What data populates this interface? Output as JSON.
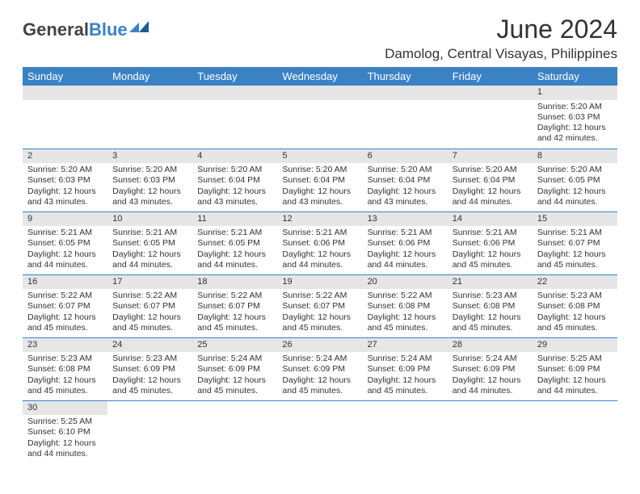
{
  "brand": {
    "part1": "General",
    "part2": "Blue"
  },
  "title": "June 2024",
  "location": "Damolog, Central Visayas, Philippines",
  "colors": {
    "header_bg": "#3b82c4",
    "header_text": "#ffffff",
    "daynum_bg": "#e6e6e6",
    "border": "#3b82c4",
    "text": "#333333",
    "background": "#ffffff"
  },
  "weekdays": [
    "Sunday",
    "Monday",
    "Tuesday",
    "Wednesday",
    "Thursday",
    "Friday",
    "Saturday"
  ],
  "weeks": [
    [
      {
        "n": "",
        "sunrise": "",
        "sunset": "",
        "daylight": ""
      },
      {
        "n": "",
        "sunrise": "",
        "sunset": "",
        "daylight": ""
      },
      {
        "n": "",
        "sunrise": "",
        "sunset": "",
        "daylight": ""
      },
      {
        "n": "",
        "sunrise": "",
        "sunset": "",
        "daylight": ""
      },
      {
        "n": "",
        "sunrise": "",
        "sunset": "",
        "daylight": ""
      },
      {
        "n": "",
        "sunrise": "",
        "sunset": "",
        "daylight": ""
      },
      {
        "n": "1",
        "sunrise": "Sunrise: 5:20 AM",
        "sunset": "Sunset: 6:03 PM",
        "daylight": "Daylight: 12 hours and 42 minutes."
      }
    ],
    [
      {
        "n": "2",
        "sunrise": "Sunrise: 5:20 AM",
        "sunset": "Sunset: 6:03 PM",
        "daylight": "Daylight: 12 hours and 43 minutes."
      },
      {
        "n": "3",
        "sunrise": "Sunrise: 5:20 AM",
        "sunset": "Sunset: 6:03 PM",
        "daylight": "Daylight: 12 hours and 43 minutes."
      },
      {
        "n": "4",
        "sunrise": "Sunrise: 5:20 AM",
        "sunset": "Sunset: 6:04 PM",
        "daylight": "Daylight: 12 hours and 43 minutes."
      },
      {
        "n": "5",
        "sunrise": "Sunrise: 5:20 AM",
        "sunset": "Sunset: 6:04 PM",
        "daylight": "Daylight: 12 hours and 43 minutes."
      },
      {
        "n": "6",
        "sunrise": "Sunrise: 5:20 AM",
        "sunset": "Sunset: 6:04 PM",
        "daylight": "Daylight: 12 hours and 43 minutes."
      },
      {
        "n": "7",
        "sunrise": "Sunrise: 5:20 AM",
        "sunset": "Sunset: 6:04 PM",
        "daylight": "Daylight: 12 hours and 44 minutes."
      },
      {
        "n": "8",
        "sunrise": "Sunrise: 5:20 AM",
        "sunset": "Sunset: 6:05 PM",
        "daylight": "Daylight: 12 hours and 44 minutes."
      }
    ],
    [
      {
        "n": "9",
        "sunrise": "Sunrise: 5:21 AM",
        "sunset": "Sunset: 6:05 PM",
        "daylight": "Daylight: 12 hours and 44 minutes."
      },
      {
        "n": "10",
        "sunrise": "Sunrise: 5:21 AM",
        "sunset": "Sunset: 6:05 PM",
        "daylight": "Daylight: 12 hours and 44 minutes."
      },
      {
        "n": "11",
        "sunrise": "Sunrise: 5:21 AM",
        "sunset": "Sunset: 6:05 PM",
        "daylight": "Daylight: 12 hours and 44 minutes."
      },
      {
        "n": "12",
        "sunrise": "Sunrise: 5:21 AM",
        "sunset": "Sunset: 6:06 PM",
        "daylight": "Daylight: 12 hours and 44 minutes."
      },
      {
        "n": "13",
        "sunrise": "Sunrise: 5:21 AM",
        "sunset": "Sunset: 6:06 PM",
        "daylight": "Daylight: 12 hours and 44 minutes."
      },
      {
        "n": "14",
        "sunrise": "Sunrise: 5:21 AM",
        "sunset": "Sunset: 6:06 PM",
        "daylight": "Daylight: 12 hours and 45 minutes."
      },
      {
        "n": "15",
        "sunrise": "Sunrise: 5:21 AM",
        "sunset": "Sunset: 6:07 PM",
        "daylight": "Daylight: 12 hours and 45 minutes."
      }
    ],
    [
      {
        "n": "16",
        "sunrise": "Sunrise: 5:22 AM",
        "sunset": "Sunset: 6:07 PM",
        "daylight": "Daylight: 12 hours and 45 minutes."
      },
      {
        "n": "17",
        "sunrise": "Sunrise: 5:22 AM",
        "sunset": "Sunset: 6:07 PM",
        "daylight": "Daylight: 12 hours and 45 minutes."
      },
      {
        "n": "18",
        "sunrise": "Sunrise: 5:22 AM",
        "sunset": "Sunset: 6:07 PM",
        "daylight": "Daylight: 12 hours and 45 minutes."
      },
      {
        "n": "19",
        "sunrise": "Sunrise: 5:22 AM",
        "sunset": "Sunset: 6:07 PM",
        "daylight": "Daylight: 12 hours and 45 minutes."
      },
      {
        "n": "20",
        "sunrise": "Sunrise: 5:22 AM",
        "sunset": "Sunset: 6:08 PM",
        "daylight": "Daylight: 12 hours and 45 minutes."
      },
      {
        "n": "21",
        "sunrise": "Sunrise: 5:23 AM",
        "sunset": "Sunset: 6:08 PM",
        "daylight": "Daylight: 12 hours and 45 minutes."
      },
      {
        "n": "22",
        "sunrise": "Sunrise: 5:23 AM",
        "sunset": "Sunset: 6:08 PM",
        "daylight": "Daylight: 12 hours and 45 minutes."
      }
    ],
    [
      {
        "n": "23",
        "sunrise": "Sunrise: 5:23 AM",
        "sunset": "Sunset: 6:08 PM",
        "daylight": "Daylight: 12 hours and 45 minutes."
      },
      {
        "n": "24",
        "sunrise": "Sunrise: 5:23 AM",
        "sunset": "Sunset: 6:09 PM",
        "daylight": "Daylight: 12 hours and 45 minutes."
      },
      {
        "n": "25",
        "sunrise": "Sunrise: 5:24 AM",
        "sunset": "Sunset: 6:09 PM",
        "daylight": "Daylight: 12 hours and 45 minutes."
      },
      {
        "n": "26",
        "sunrise": "Sunrise: 5:24 AM",
        "sunset": "Sunset: 6:09 PM",
        "daylight": "Daylight: 12 hours and 45 minutes."
      },
      {
        "n": "27",
        "sunrise": "Sunrise: 5:24 AM",
        "sunset": "Sunset: 6:09 PM",
        "daylight": "Daylight: 12 hours and 45 minutes."
      },
      {
        "n": "28",
        "sunrise": "Sunrise: 5:24 AM",
        "sunset": "Sunset: 6:09 PM",
        "daylight": "Daylight: 12 hours and 44 minutes."
      },
      {
        "n": "29",
        "sunrise": "Sunrise: 5:25 AM",
        "sunset": "Sunset: 6:09 PM",
        "daylight": "Daylight: 12 hours and 44 minutes."
      }
    ],
    [
      {
        "n": "30",
        "sunrise": "Sunrise: 5:25 AM",
        "sunset": "Sunset: 6:10 PM",
        "daylight": "Daylight: 12 hours and 44 minutes."
      },
      {
        "n": "",
        "sunrise": "",
        "sunset": "",
        "daylight": ""
      },
      {
        "n": "",
        "sunrise": "",
        "sunset": "",
        "daylight": ""
      },
      {
        "n": "",
        "sunrise": "",
        "sunset": "",
        "daylight": ""
      },
      {
        "n": "",
        "sunrise": "",
        "sunset": "",
        "daylight": ""
      },
      {
        "n": "",
        "sunrise": "",
        "sunset": "",
        "daylight": ""
      },
      {
        "n": "",
        "sunrise": "",
        "sunset": "",
        "daylight": ""
      }
    ]
  ]
}
